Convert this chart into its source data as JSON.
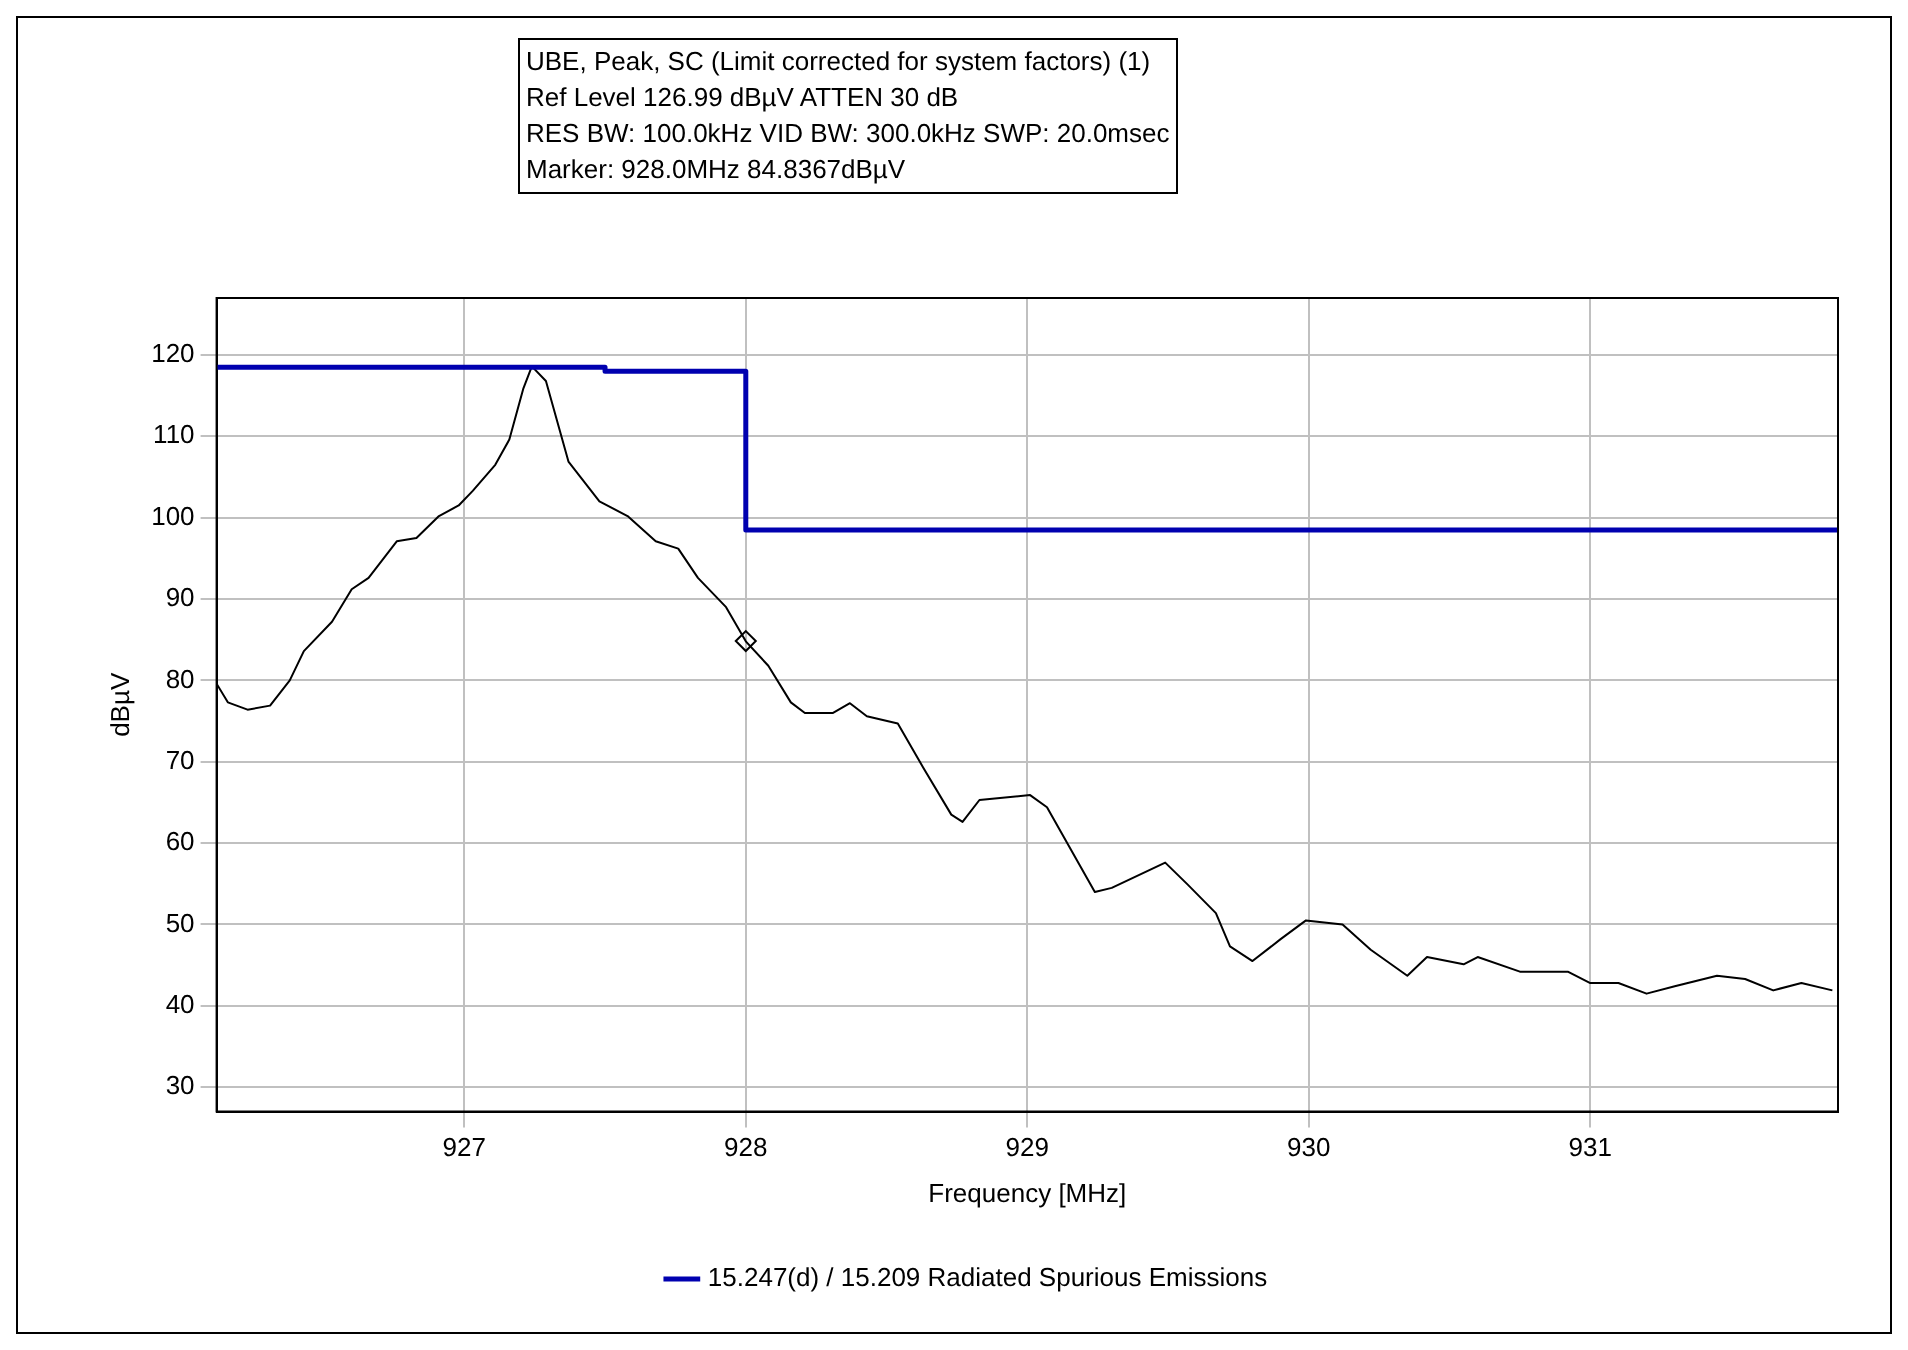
{
  "chart_data": {
    "type": "line",
    "xlabel": "Frequency [MHz]",
    "ylabel": "dBµV",
    "annotations": [
      "UBE, Peak, SC (Limit corrected for system factors) (1)",
      "Ref Level 126.99 dBµV    ATTEN 30 dB",
      "RES BW: 100.0kHz  VID BW: 300.0kHz  SWP: 20.0msec",
      "Marker: 928.0MHz  84.8367dBµV"
    ],
    "xlim": [
      926.12,
      931.88
    ],
    "xticks": [
      927,
      928,
      929,
      930,
      931
    ],
    "ylim": [
      27,
      127
    ],
    "yticks": [
      30,
      40,
      50,
      60,
      70,
      80,
      90,
      100,
      110,
      120
    ],
    "grid": true,
    "legend": "bottom",
    "marker": "none",
    "line_style": "solid",
    "series": [
      {
        "name": "15.247(d) / 15.209 Radiated Spurious Emissions",
        "color": "#0000b0",
        "x": [
          926.12,
          927.5,
          927.5,
          928,
          928,
          931.88
        ],
        "values": [
          118.5,
          118.5,
          118,
          118,
          98.5,
          98.5
        ]
      },
      {
        "color": "#000000",
        "x": [
          926.12,
          926.16,
          926.23,
          926.31,
          926.38,
          926.43,
          926.53,
          926.6,
          926.66,
          926.76,
          926.83,
          926.91,
          926.98,
          927.03,
          927.11,
          927.16,
          927.21,
          927.24,
          927.29,
          927.37,
          927.48,
          927.58,
          927.68,
          927.76,
          927.83,
          927.93,
          928.0,
          928.08,
          928.16,
          928.21,
          928.31,
          928.37,
          928.43,
          928.54,
          928.63,
          928.73,
          928.77,
          928.83,
          929.01,
          929.07,
          929.24,
          929.3,
          929.49,
          929.57,
          929.67,
          929.72,
          929.8,
          929.9,
          929.99,
          930.12,
          930.22,
          930.35,
          930.42,
          930.55,
          930.6,
          930.75,
          930.92,
          931.0,
          931.1,
          931.2,
          931.3,
          931.45,
          931.55,
          931.65,
          931.75,
          931.86
        ],
        "values": [
          79.6,
          77.3,
          76.4,
          76.9,
          80.0,
          83.6,
          87.2,
          91.2,
          92.6,
          97.1,
          97.5,
          100.2,
          101.5,
          103.3,
          106.5,
          109.6,
          115.9,
          118.6,
          116.8,
          106.9,
          102.0,
          100.2,
          97.1,
          96.2,
          92.6,
          89.0,
          84.8,
          81.8,
          77.3,
          76.0,
          76.0,
          77.2,
          75.6,
          74.7,
          69.3,
          63.5,
          62.6,
          65.3,
          65.9,
          64.4,
          54.0,
          54.5,
          57.6,
          54.9,
          51.4,
          47.3,
          45.5,
          48.2,
          50.5,
          50.0,
          46.9,
          43.7,
          46.0,
          45.1,
          46.0,
          44.2,
          44.2,
          42.8,
          42.8,
          41.5,
          42.4,
          43.7,
          43.3,
          41.9,
          42.8,
          41.9
        ]
      },
      {
        "type": "scatter",
        "marker": "diamond",
        "color": "#000000",
        "x": [
          928.0
        ],
        "values": [
          84.8367
        ]
      }
    ]
  }
}
